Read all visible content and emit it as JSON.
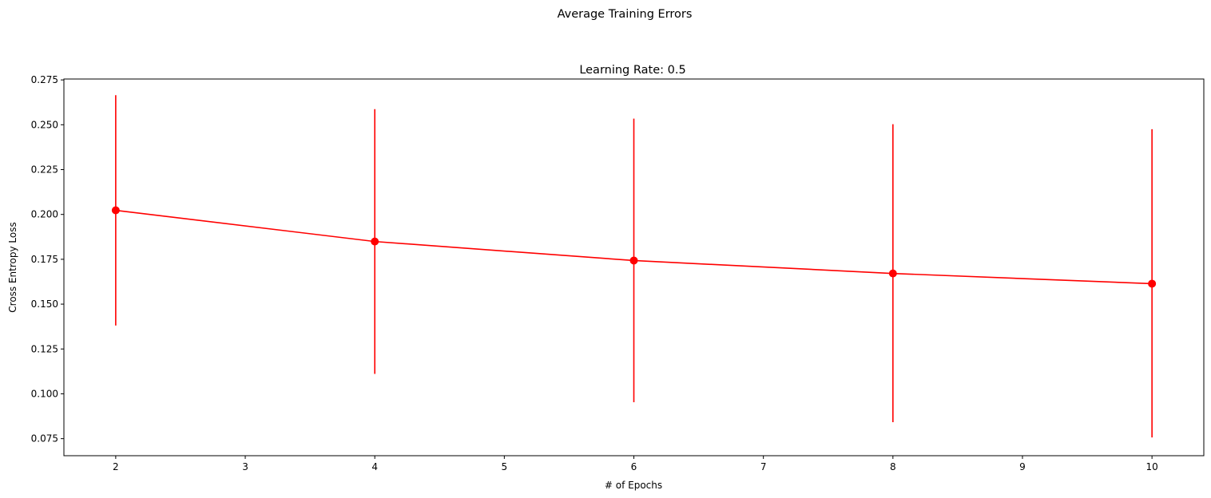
{
  "chart_data": {
    "type": "line",
    "suptitle": "Average Training Errors",
    "title": "Learning Rate: 0.5",
    "xlabel": "# of Epochs",
    "ylabel": "Cross Entropy Loss",
    "xlim": [
      1.6,
      10.4
    ],
    "ylim": [
      0.0655,
      0.2755
    ],
    "xticks": [
      2,
      3,
      4,
      5,
      6,
      7,
      8,
      9,
      10
    ],
    "xtick_labels": [
      "2",
      "3",
      "4",
      "5",
      "6",
      "7",
      "8",
      "9",
      "10"
    ],
    "yticks": [
      0.075,
      0.1,
      0.125,
      0.15,
      0.175,
      0.2,
      0.225,
      0.25,
      0.275
    ],
    "ytick_labels": [
      "0.075",
      "0.100",
      "0.125",
      "0.150",
      "0.175",
      "0.200",
      "0.225",
      "0.250",
      "0.275"
    ],
    "grid": false,
    "legend": "none",
    "series": [
      {
        "color": "#ff0000",
        "marker": "circle",
        "x": [
          2,
          4,
          6,
          8,
          10
        ],
        "y": [
          0.2023,
          0.1849,
          0.1743,
          0.1671,
          0.1614
        ],
        "err_low": [
          0.1381,
          0.1111,
          0.0953,
          0.0842,
          0.0757
        ],
        "err_high": [
          0.2665,
          0.2587,
          0.2534,
          0.2503,
          0.2475
        ]
      }
    ]
  }
}
